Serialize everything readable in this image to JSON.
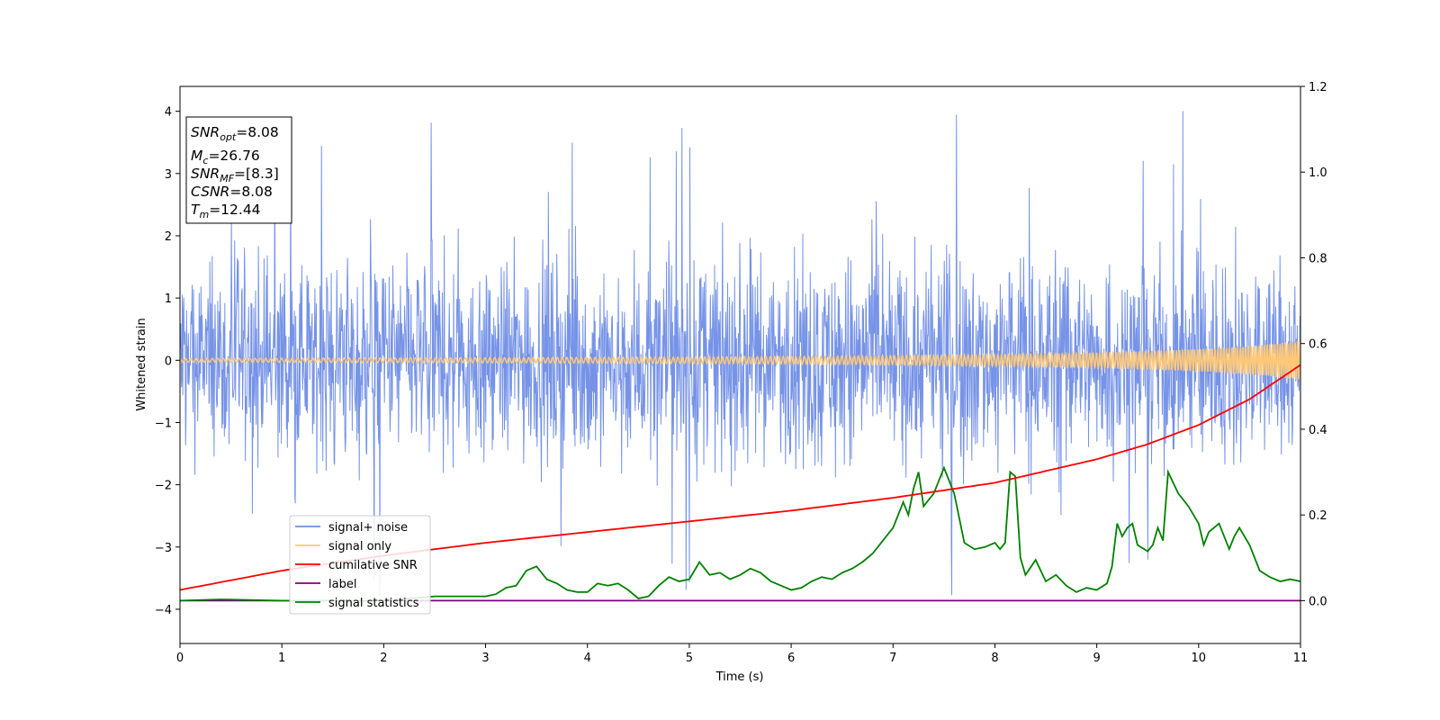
{
  "chart_data": {
    "type": "line",
    "title": "",
    "xlabel": "Time (s)",
    "ylabel": "Whitened strain",
    "y2label": "",
    "xlim": [
      0,
      11
    ],
    "ylim": [
      -4.55,
      4.4
    ],
    "y2lim": [
      -0.1,
      1.2
    ],
    "xticks": [
      "0",
      "1",
      "2",
      "3",
      "4",
      "5",
      "6",
      "7",
      "8",
      "9",
      "10",
      "11"
    ],
    "yticks": [
      "4",
      "3",
      "2",
      "1",
      "0",
      "−1",
      "−2",
      "−3",
      "−4"
    ],
    "y2ticks": [
      "1.2",
      "1.0",
      "0.8",
      "0.6",
      "0.4",
      "0.2",
      "0.0"
    ],
    "grid": false,
    "legend_position": "lower-left",
    "colors": {
      "noise": "#6f8de6",
      "signal": "#ffc878",
      "csnr": "#ff0000",
      "label": "#800080",
      "stats": "#008000"
    },
    "textbox": {
      "snr_opt": {
        "sym": "SNR",
        "sub": "opt",
        "val": "=8.08"
      },
      "mc": {
        "sym": "M",
        "sub": "c",
        "val": "=26.76"
      },
      "snr_mf": {
        "sym": "SNR",
        "sub": "MF",
        "val": "=[8.3]"
      },
      "csnr": {
        "sym": "CSNR",
        "val": "=8.08"
      },
      "tm": {
        "sym": "T",
        "sub": "m",
        "val": "=12.44"
      }
    },
    "series": [
      {
        "name": "signal+ noise",
        "axis": "left",
        "style": "noise band, approx ±1.5 with spikes to about ±4"
      },
      {
        "name": "signal only",
        "axis": "left",
        "style": "chirp, amplitude 0.03 rising to 0.3 at t=11"
      },
      {
        "name": "cumilative SNR",
        "axis": "right",
        "x": [
          0,
          1,
          2,
          3,
          4,
          5,
          6,
          7,
          8,
          9,
          9.5,
          10,
          10.5,
          11
        ],
        "y": [
          0.025,
          0.07,
          0.105,
          0.135,
          0.16,
          0.185,
          0.21,
          0.24,
          0.275,
          0.33,
          0.365,
          0.41,
          0.47,
          0.55
        ]
      },
      {
        "name": "label",
        "axis": "right",
        "x": [
          0,
          11
        ],
        "y": [
          0.0,
          0.0
        ]
      },
      {
        "name": "signal statistics",
        "axis": "right",
        "x": [
          0,
          0.4,
          1,
          2,
          2.5,
          3,
          3.1,
          3.2,
          3.3,
          3.4,
          3.5,
          3.6,
          3.7,
          3.8,
          3.9,
          4.0,
          4.1,
          4.2,
          4.3,
          4.4,
          4.5,
          4.6,
          4.7,
          4.8,
          4.9,
          5.0,
          5.1,
          5.2,
          5.3,
          5.4,
          5.5,
          5.6,
          5.7,
          5.8,
          5.9,
          6.0,
          6.1,
          6.2,
          6.3,
          6.4,
          6.5,
          6.6,
          6.7,
          6.8,
          6.9,
          7.0,
          7.1,
          7.15,
          7.2,
          7.25,
          7.3,
          7.4,
          7.5,
          7.6,
          7.7,
          7.8,
          7.9,
          8.0,
          8.05,
          8.1,
          8.15,
          8.2,
          8.25,
          8.3,
          8.4,
          8.5,
          8.6,
          8.7,
          8.8,
          8.9,
          9.0,
          9.1,
          9.15,
          9.2,
          9.25,
          9.3,
          9.35,
          9.4,
          9.5,
          9.55,
          9.6,
          9.65,
          9.7,
          9.8,
          9.9,
          10.0,
          10.05,
          10.1,
          10.2,
          10.3,
          10.35,
          10.4,
          10.5,
          10.6,
          10.7,
          10.8,
          10.9,
          11.0
        ],
        "y": [
          0.0,
          0.003,
          0.0,
          0.0,
          0.01,
          0.01,
          0.015,
          0.03,
          0.035,
          0.07,
          0.08,
          0.05,
          0.04,
          0.025,
          0.02,
          0.02,
          0.04,
          0.035,
          0.04,
          0.025,
          0.005,
          0.01,
          0.035,
          0.055,
          0.045,
          0.05,
          0.09,
          0.06,
          0.065,
          0.05,
          0.06,
          0.075,
          0.065,
          0.045,
          0.035,
          0.025,
          0.03,
          0.045,
          0.055,
          0.05,
          0.065,
          0.075,
          0.09,
          0.11,
          0.14,
          0.17,
          0.23,
          0.2,
          0.26,
          0.3,
          0.22,
          0.25,
          0.31,
          0.25,
          0.135,
          0.12,
          0.125,
          0.135,
          0.12,
          0.135,
          0.3,
          0.29,
          0.1,
          0.06,
          0.095,
          0.045,
          0.06,
          0.035,
          0.02,
          0.03,
          0.025,
          0.04,
          0.08,
          0.18,
          0.15,
          0.17,
          0.18,
          0.13,
          0.115,
          0.13,
          0.17,
          0.14,
          0.3,
          0.25,
          0.22,
          0.18,
          0.13,
          0.16,
          0.18,
          0.12,
          0.15,
          0.17,
          0.13,
          0.07,
          0.055,
          0.045,
          0.05,
          0.045
        ]
      }
    ]
  }
}
